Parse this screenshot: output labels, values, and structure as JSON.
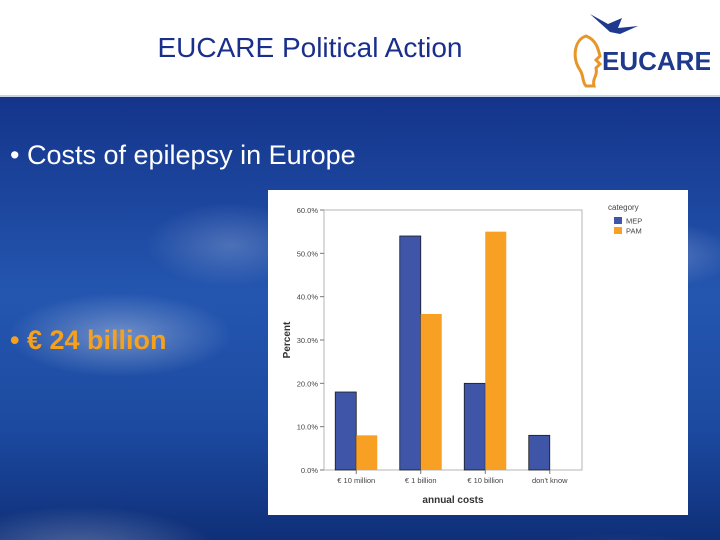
{
  "header": {
    "title": "EUCARE Political Action",
    "logo_text": "EUCARE"
  },
  "bullets": [
    {
      "marker": "•",
      "text": "Costs of epilepsy in Europe"
    },
    {
      "marker": "•",
      "text": "€ 24 billion"
    }
  ],
  "colors": {
    "title": "#1a2f8c",
    "highlight": "#f5a11d",
    "mep": "#3e55a8",
    "pam": "#f7a023"
  },
  "chart_data": {
    "type": "bar",
    "title": "",
    "xlabel": "annual costs",
    "ylabel": "Percent",
    "categories": [
      "€ 10 million",
      "€ 1 billion",
      "€ 10 billion",
      "don't know"
    ],
    "legend_title": "category",
    "legend_position": "top-right",
    "series": [
      {
        "name": "MEP",
        "values": [
          18.0,
          54.0,
          20.0,
          8.0
        ]
      },
      {
        "name": "PAM",
        "values": [
          8.0,
          36.0,
          55.0,
          0.0
        ]
      }
    ],
    "ylim": [
      0,
      60
    ],
    "yticks": [
      0,
      10,
      20,
      30,
      40,
      50,
      60
    ],
    "ytick_labels": [
      "0.0%",
      "10.0%",
      "20.0%",
      "30.0%",
      "40.0%",
      "50.0%",
      "60.0%"
    ],
    "grid": false
  }
}
